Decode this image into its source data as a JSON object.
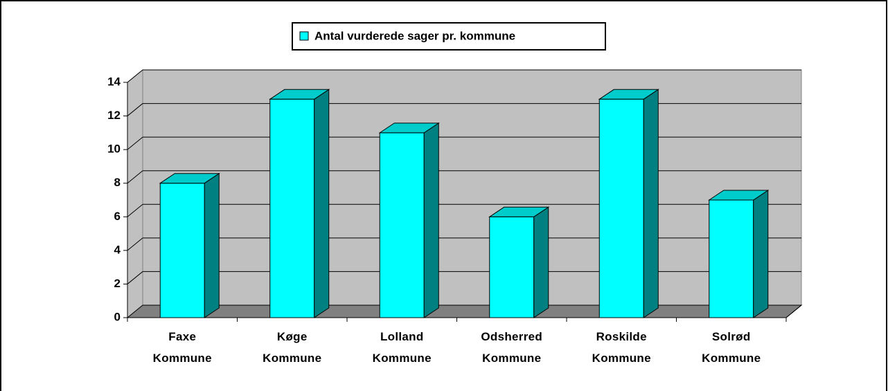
{
  "chart_data": {
    "type": "bar3d",
    "series": [
      {
        "name": "Antal vurderede sager pr. kommune",
        "color": "#00ffff",
        "values": [
          8,
          13,
          11,
          6,
          13,
          7
        ]
      }
    ],
    "categories": [
      "Faxe\nKommune",
      "Køge\nKommune",
      "Lolland\nKommune",
      "Odsherred\nKommune",
      "Roskilde\nKommune",
      "Solrød\nKommune"
    ],
    "ylim": [
      0,
      14
    ],
    "yticks": [
      0,
      2,
      4,
      6,
      8,
      10,
      12,
      14
    ],
    "grid": true,
    "legend": "top"
  }
}
